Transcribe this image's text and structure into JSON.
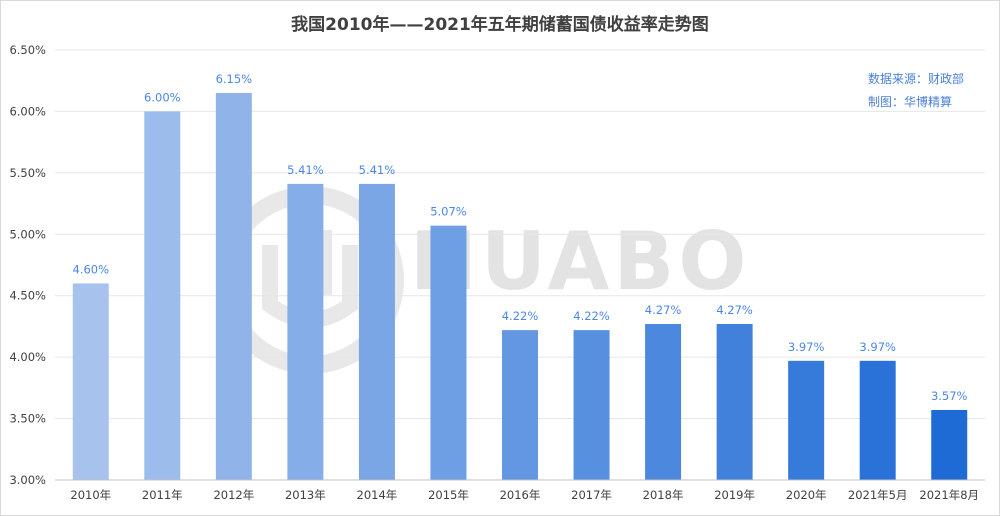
{
  "chart_data": {
    "type": "bar",
    "title": "我国2010年——2021年五年期储蓄国债收益率走势图",
    "categories": [
      "2010年",
      "2011年",
      "2012年",
      "2013年",
      "2014年",
      "2015年",
      "2016年",
      "2017年",
      "2018年",
      "2019年",
      "2020年",
      "2021年5月",
      "2021年8月"
    ],
    "values": [
      4.6,
      6.0,
      6.15,
      5.41,
      5.41,
      5.07,
      4.22,
      4.22,
      4.27,
      4.27,
      3.97,
      3.97,
      3.57
    ],
    "value_labels": [
      "4.60%",
      "6.00%",
      "6.15%",
      "5.41%",
      "5.41%",
      "5.07%",
      "4.22%",
      "4.22%",
      "4.27%",
      "4.27%",
      "3.97%",
      "3.97%",
      "3.57%"
    ],
    "ylim": [
      3.0,
      6.5
    ],
    "yticks": [
      3.0,
      3.5,
      4.0,
      4.5,
      5.0,
      5.5,
      6.0,
      6.5
    ],
    "ytick_labels": [
      "3.00%",
      "3.50%",
      "4.00%",
      "4.50%",
      "5.00%",
      "5.50%",
      "6.00%",
      "6.50%"
    ],
    "xlabel": "",
    "ylabel": "",
    "grid": true,
    "bar_color_start": "#a7c3ed",
    "bar_color_end": "#1f6bd6",
    "label_color": "#4a86e8"
  },
  "annotation": {
    "source_line": "数据来源：财政部",
    "credit_line": "制图：华博精算"
  },
  "watermark": {
    "text": "HUABO"
  }
}
